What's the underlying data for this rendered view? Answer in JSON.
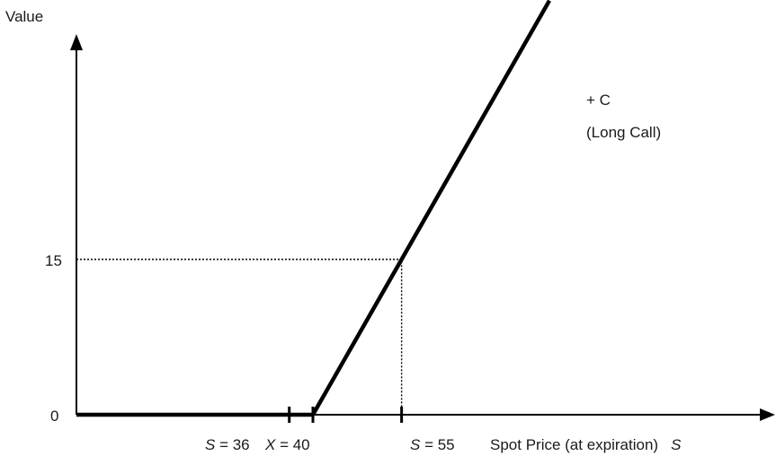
{
  "chart_data": {
    "type": "line",
    "ylabel": "Value",
    "xlabel": "Spot Price (at expiration)",
    "xlabel_symbol": "S",
    "series": [
      {
        "name": "+ C",
        "name_line2": "(Long Call)",
        "points": [
          [
            0,
            0
          ],
          [
            40,
            0
          ],
          [
            55,
            15
          ],
          [
            80,
            40
          ]
        ]
      }
    ],
    "y_ticks": [
      {
        "value": 0,
        "label": "0"
      },
      {
        "value": 15,
        "label": "15"
      }
    ],
    "x_markers": [
      {
        "value": 36,
        "symbol": "S",
        "text": " = 36"
      },
      {
        "value": 40,
        "symbol": "X",
        "text": " = 40"
      },
      {
        "value": 55,
        "symbol": "S",
        "text": " = 55"
      }
    ],
    "guides": [
      {
        "x": 55,
        "y": 15
      }
    ],
    "grid": false,
    "legend": "none"
  }
}
